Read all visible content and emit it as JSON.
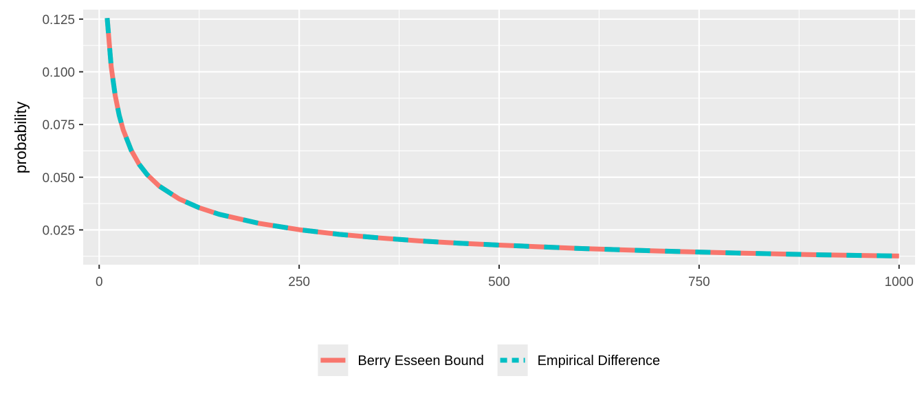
{
  "chart_data": {
    "type": "line",
    "title": "",
    "xlabel": "",
    "ylabel": "probability",
    "xlim": [
      -20,
      1020
    ],
    "ylim": [
      0.0085,
      0.1295
    ],
    "x_ticks": [
      0,
      250,
      500,
      750,
      1000
    ],
    "x_tick_labels": [
      "0",
      "250",
      "500",
      "750",
      "1000"
    ],
    "y_ticks": [
      0.025,
      0.05,
      0.075,
      0.1,
      0.125
    ],
    "y_tick_labels": [
      "0.025",
      "0.050",
      "0.075",
      "0.100",
      "0.125"
    ],
    "grid": true,
    "legend_position": "bottom",
    "x": [
      10,
      15,
      20,
      25,
      30,
      40,
      50,
      60,
      75,
      100,
      125,
      150,
      200,
      250,
      300,
      350,
      400,
      450,
      500,
      600,
      700,
      800,
      900,
      1000
    ],
    "series": [
      {
        "name": "Berry Esseen Bound",
        "color": "#F8766D",
        "style": "solid",
        "values": [
          0.1255,
          0.1025,
          0.0888,
          0.0794,
          0.0725,
          0.0628,
          0.0561,
          0.0512,
          0.0458,
          0.0397,
          0.0355,
          0.0324,
          0.0281,
          0.0251,
          0.0229,
          0.0212,
          0.0198,
          0.0187,
          0.0178,
          0.0162,
          0.015,
          0.014,
          0.0132,
          0.0126
        ]
      },
      {
        "name": "Empirical Difference",
        "color": "#00BFC4",
        "style": "dashed",
        "values": [
          0.1255,
          0.1025,
          0.0888,
          0.0794,
          0.0725,
          0.0628,
          0.0561,
          0.0512,
          0.0458,
          0.0397,
          0.0355,
          0.0324,
          0.0281,
          0.0251,
          0.0229,
          0.0212,
          0.0198,
          0.0187,
          0.0178,
          0.0162,
          0.015,
          0.014,
          0.0132,
          0.0126
        ]
      }
    ]
  }
}
